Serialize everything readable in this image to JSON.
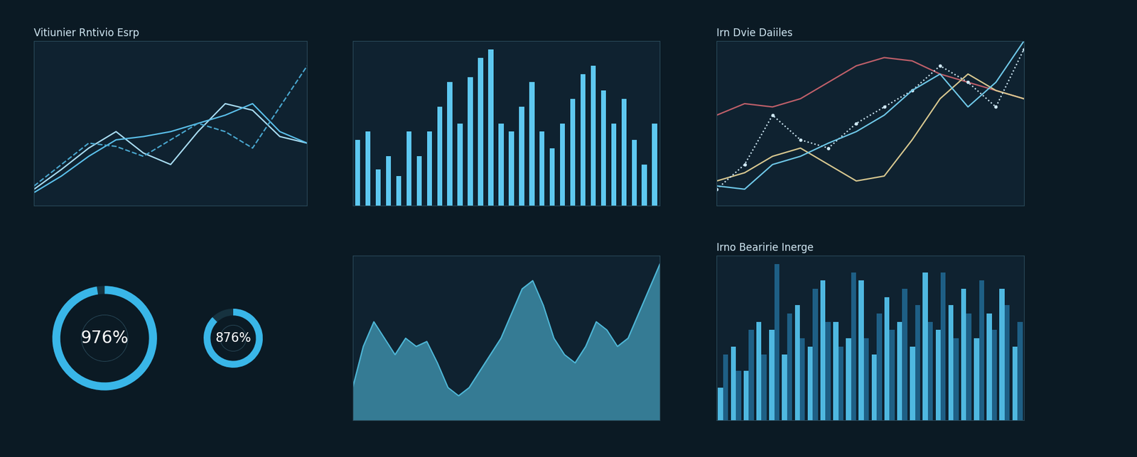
{
  "chart_data": [
    {
      "type": "line",
      "title": "Vitiunier Rntivio Esrp",
      "x": [
        0,
        1,
        2,
        3,
        4,
        5,
        6,
        7,
        8,
        9,
        10
      ],
      "xlim": [
        0,
        10
      ],
      "ylim": [
        0,
        10
      ],
      "tick_labels": false,
      "grid": false,
      "series": [
        {
          "color": "#a8dcf2",
          "line_style": "solid",
          "values": [
            1.0,
            2.2,
            3.5,
            4.5,
            3.2,
            2.5,
            4.5,
            6.2,
            5.8,
            4.2,
            3.8
          ]
        },
        {
          "color": "#5bc0eb",
          "line_style": "solid",
          "values": [
            0.8,
            1.8,
            3.0,
            4.0,
            4.2,
            4.5,
            5.0,
            5.5,
            6.2,
            4.5,
            3.8
          ]
        },
        {
          "color": "#4aa8d0",
          "line_style": "dashed",
          "values": [
            1.2,
            2.5,
            3.8,
            3.6,
            3.0,
            4.0,
            5.0,
            4.5,
            3.5,
            6.0,
            8.5
          ]
        }
      ]
    },
    {
      "type": "bar",
      "categories": [
        null,
        null,
        null,
        null,
        null,
        null,
        null,
        null,
        null,
        null,
        null,
        null,
        null,
        null,
        null,
        null,
        null,
        null,
        null,
        null,
        null,
        null,
        null,
        null,
        null,
        null,
        null,
        null,
        null,
        null
      ],
      "values": [
        4.0,
        4.5,
        2.2,
        3.0,
        1.8,
        4.5,
        3.0,
        4.5,
        6.0,
        7.5,
        5.0,
        7.8,
        9.0,
        9.5,
        5.0,
        4.5,
        6.0,
        7.5,
        4.5,
        3.5,
        5.0,
        6.5,
        8.0,
        8.5,
        7.0,
        5.0,
        6.5,
        4.0,
        2.5,
        5.0
      ],
      "color": "#5ec8f0",
      "ylim": [
        0,
        10
      ],
      "tick_labels": false,
      "grid": true
    },
    {
      "type": "line",
      "title": "Irn Dvie Daiiles",
      "x": [
        0,
        1,
        2,
        3,
        4,
        5,
        6,
        7,
        8,
        9,
        10,
        11
      ],
      "xlim": [
        0,
        11
      ],
      "ylim": [
        0,
        10
      ],
      "tick_labels": false,
      "grid": true,
      "series": [
        {
          "color": "#c0606a",
          "line_style": "solid",
          "values": [
            5.5,
            6.2,
            6.0,
            6.5,
            7.5,
            8.5,
            9.0,
            8.8,
            8.0,
            7.5,
            7.0,
            6.5
          ]
        },
        {
          "color": "#d8c890",
          "line_style": "solid",
          "values": [
            1.5,
            2.0,
            3.0,
            3.5,
            2.5,
            1.5,
            1.8,
            4.0,
            6.5,
            8.0,
            7.0,
            6.5
          ]
        },
        {
          "color": "#cfe8f5",
          "line_style": "dotted",
          "marker": "o",
          "values": [
            1.0,
            2.5,
            5.5,
            4.0,
            3.5,
            5.0,
            6.0,
            7.0,
            8.5,
            7.5,
            6.0,
            9.5
          ]
        },
        {
          "color": "#6fc8e8",
          "line_style": "solid",
          "values": [
            1.2,
            1.0,
            2.5,
            3.0,
            3.8,
            4.5,
            5.5,
            7.0,
            8.0,
            6.0,
            7.5,
            10.0
          ]
        }
      ]
    },
    {
      "type": "gauge",
      "values": [
        976,
        876
      ],
      "value_labels": [
        "976%",
        "876%"
      ],
      "ylim": [
        0,
        1000
      ],
      "colors": [
        "#39b6e8",
        "#39b6e8"
      ]
    },
    {
      "type": "area",
      "x": [
        0,
        1,
        2,
        3,
        4,
        5,
        6,
        7,
        8,
        9,
        10,
        11,
        12,
        13,
        14,
        15,
        16,
        17,
        18,
        19,
        20,
        21,
        22,
        23,
        24,
        25,
        26,
        27,
        28,
        29
      ],
      "values": [
        2.0,
        4.5,
        6.0,
        5.0,
        4.0,
        5.0,
        4.5,
        4.8,
        3.5,
        2.0,
        1.5,
        2.0,
        3.0,
        4.0,
        5.0,
        6.5,
        8.0,
        8.5,
        7.0,
        5.0,
        4.0,
        3.5,
        4.5,
        6.0,
        5.5,
        4.5,
        5.0,
        6.5,
        8.0,
        9.5
      ],
      "xlim": [
        0,
        29
      ],
      "ylim": [
        0,
        10
      ],
      "color": "#4fb8d8",
      "tick_labels": false,
      "grid": false
    },
    {
      "type": "bar",
      "title": "Irno Bearirie Inerge",
      "categories": [
        null,
        null,
        null,
        null,
        null,
        null,
        null,
        null,
        null,
        null,
        null,
        null,
        null,
        null,
        null,
        null,
        null,
        null,
        null,
        null,
        null,
        null,
        null,
        null
      ],
      "ylim": [
        0,
        10
      ],
      "tick_labels": false,
      "grid": false,
      "series": [
        {
          "color": "#4fb8e0",
          "values": [
            2.0,
            4.5,
            3.0,
            6.0,
            5.5,
            4.0,
            7.0,
            4.5,
            8.5,
            6.0,
            5.0,
            8.5,
            4.0,
            7.5,
            6.0,
            4.5,
            9.0,
            5.5,
            7.0,
            8.0,
            5.0,
            6.5,
            8.0,
            4.5
          ]
        },
        {
          "color": "#1e5f85",
          "values": [
            4.0,
            3.0,
            5.5,
            4.0,
            9.5,
            6.5,
            5.0,
            8.0,
            6.0,
            4.5,
            9.0,
            5.0,
            6.5,
            5.5,
            8.0,
            7.0,
            6.0,
            9.0,
            5.0,
            6.5,
            8.5,
            5.5,
            7.0,
            6.0
          ]
        }
      ]
    }
  ]
}
